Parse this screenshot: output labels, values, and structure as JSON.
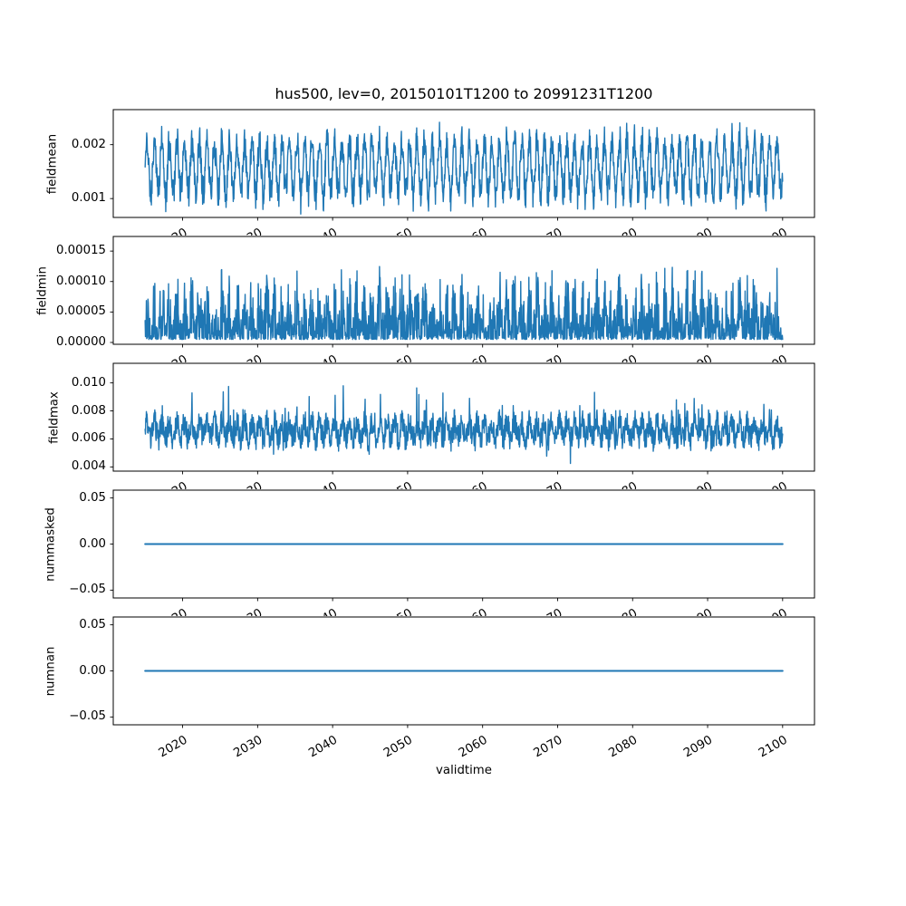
{
  "figure": {
    "title": "hus500, lev=0, 20150101T1200 to 20991231T1200",
    "xlabel": "validtime",
    "background": "#ffffff",
    "line_color": "#1f77b4",
    "spine_color": "#000000",
    "text_color": "#000000"
  },
  "x_axis": {
    "label": "validtime",
    "xlim": [
      2010.75,
      2104.25
    ],
    "ticks": [
      2020,
      2030,
      2040,
      2050,
      2060,
      2070,
      2080,
      2090,
      2100
    ],
    "tick_labels": [
      "2020",
      "2030",
      "2040",
      "2050",
      "2060",
      "2070",
      "2080",
      "2090",
      "2100"
    ],
    "tick_rotation_deg": 30,
    "data_start": 2015.0,
    "data_end": 2100.0
  },
  "chart_data": [
    {
      "type": "line",
      "name": "fieldmean",
      "ylabel": "fieldmean",
      "ylim": [
        0.00065,
        0.00265
      ],
      "ytick_values": [
        0.001,
        0.002
      ],
      "ytick_labels": [
        "0.001",
        "0.002"
      ],
      "series": {
        "kind": "seasonal_noise_mean",
        "points_per_year": 24,
        "year_start": 2015,
        "year_end": 2100,
        "base": 0.00157,
        "annual_amp": 0.00036,
        "amp_jitter": 0.00026,
        "noise": 0.00026,
        "seed": 11,
        "approx_min": 0.0007,
        "approx_max": 0.00245
      }
    },
    {
      "type": "line",
      "name": "fieldmin",
      "ylabel": "fieldmin",
      "ylim": [
        -3e-06,
        0.000174
      ],
      "ytick_values": [
        0.0,
        5e-05,
        0.0001,
        0.00015
      ],
      "ytick_labels": [
        "0.00000",
        "0.00005",
        "0.00010",
        "0.00015"
      ],
      "series": {
        "kind": "seasonal_noise_min",
        "points_per_year": 24,
        "year_start": 2015,
        "year_end": 2100,
        "base": 5e-06,
        "band": 8e-05,
        "annual_amp": 4e-05,
        "pow": 2.0,
        "spike": 4e-05,
        "seed": 22,
        "approx_min": 5e-06,
        "approx_max": 0.000166
      }
    },
    {
      "type": "line",
      "name": "fieldmax",
      "ylabel": "fieldmax",
      "ylim": [
        0.0037,
        0.0114
      ],
      "ytick_values": [
        0.004,
        0.006,
        0.008,
        0.01
      ],
      "ytick_labels": [
        "0.004",
        "0.006",
        "0.008",
        "0.010"
      ],
      "series": {
        "kind": "seasonal_noise_max",
        "points_per_year": 24,
        "year_start": 2015,
        "year_end": 2100,
        "base": 0.0066,
        "annual_amp": 0.0006,
        "noise": 0.0009,
        "spike": 0.0026,
        "dip": 0.0014,
        "seed": 33,
        "approx_min": 0.004,
        "approx_max": 0.011
      }
    },
    {
      "type": "line",
      "name": "nummasked",
      "ylabel": "nummasked",
      "ylim": [
        -0.0585,
        0.0585
      ],
      "ytick_values": [
        -0.05,
        0.0,
        0.05
      ],
      "ytick_labels": [
        "−0.05",
        "0.00",
        "0.05"
      ],
      "series": {
        "kind": "constant",
        "value": 0.0
      }
    },
    {
      "type": "line",
      "name": "numnan",
      "ylabel": "numnan",
      "ylim": [
        -0.0585,
        0.0585
      ],
      "ytick_values": [
        -0.05,
        0.0,
        0.05
      ],
      "ytick_labels": [
        "−0.05",
        "0.00",
        "0.05"
      ],
      "series": {
        "kind": "constant",
        "value": 0.0
      }
    }
  ]
}
